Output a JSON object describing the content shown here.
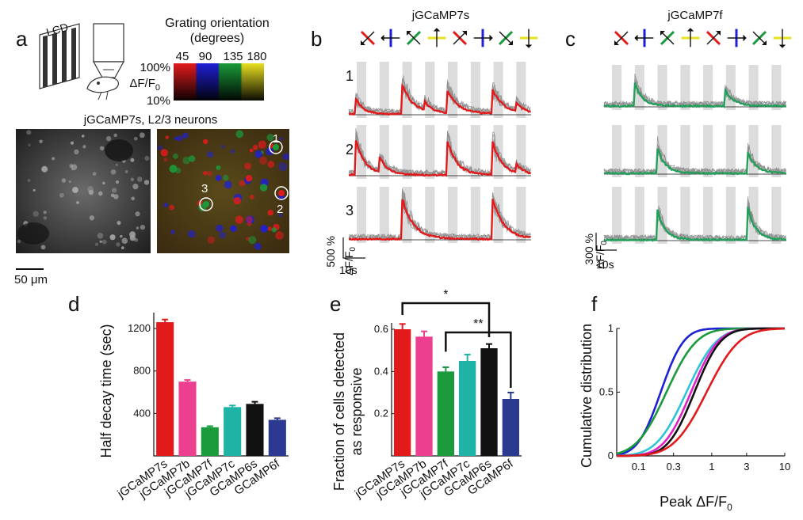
{
  "colors": {
    "red": "#e31a1c",
    "blue": "#1f1fd6",
    "green": "#1a9a3a",
    "yellow": "#e8e020",
    "grey": "#8c8c8c",
    "stim": "#dcdcdc",
    "trace_green": "#22a05a",
    "pink": "#ec3f8f",
    "teal": "#1fb3a5",
    "black": "#111111",
    "navy": "#2b3990",
    "cyan": "#2ec4d6",
    "magenta": "#e020c8"
  },
  "panel_a": {
    "label": "a",
    "lcd": "LCD",
    "colorbar_title_1": "Grating orientation",
    "colorbar_title_2": "(degrees)",
    "orientation_ticks": [
      "45",
      "90",
      "135",
      "180"
    ],
    "colorbar_max": "100%",
    "colorbar_min": "10%",
    "colorbar_ylabel": "ΔF/F",
    "colorbar_ylabel_sub": "0",
    "image_title": "jGCaMP7s, L2/3 neurons",
    "scale_bar": "50 μm",
    "cell_labels": [
      "1",
      "2",
      "3"
    ]
  },
  "panel_b": {
    "label": "b",
    "title": "jGCaMP7s",
    "row_labels": [
      "1",
      "2",
      "3"
    ],
    "scale_y": "500 %",
    "scale_unit": "ΔF/F",
    "scale_unit_sub": "0",
    "scale_x": "10s"
  },
  "panel_c": {
    "label": "c",
    "title": "jGCaMP7f",
    "scale_y": "300 %",
    "scale_unit": "ΔF/F",
    "scale_unit_sub": "0",
    "scale_x": "10s"
  },
  "chart_data": [
    {
      "type": "bar",
      "panel": "d",
      "categories": [
        "jGCaMP7s",
        "jGCaMP7b",
        "jGCaMP7f",
        "jGCaMP7c",
        "GCaMP6s",
        "GCaMP6f"
      ],
      "values": [
        1260,
        700,
        270,
        460,
        490,
        340
      ],
      "errors": [
        25,
        15,
        10,
        15,
        20,
        15
      ],
      "ylabel": "Half decay time (sec)",
      "yticks": [
        "400",
        "800",
        "1200"
      ],
      "ylim": [
        0,
        1350
      ]
    },
    {
      "type": "bar",
      "panel": "e",
      "categories": [
        "jGCaMP7s",
        "jGCaMP7b",
        "jGCaMP7f",
        "jGCaMP7c",
        "GCaMP6s",
        "GCaMP6f"
      ],
      "values": [
        0.6,
        0.565,
        0.4,
        0.45,
        0.51,
        0.27
      ],
      "errors": [
        0.025,
        0.025,
        0.02,
        0.03,
        0.02,
        0.03
      ],
      "ylabel_1": "Fraction of cells detected",
      "ylabel_2": "as responsive",
      "yticks": [
        "0.2",
        "0.4",
        "0.6"
      ],
      "ylim": [
        0,
        0.63
      ],
      "significance": [
        {
          "label": "*",
          "from": "jGCaMP7s",
          "to": "GCaMP6s"
        },
        {
          "label": "**",
          "from": "jGCaMP7f",
          "to": "GCaMP6f"
        }
      ]
    },
    {
      "type": "line",
      "panel": "f",
      "xscale": "log",
      "xlabel": "Peak ΔF/F",
      "xlabel_sub": "0",
      "ylabel": "Cumulative distribution",
      "xticks": [
        "0.1",
        "0.3",
        "1",
        "3",
        "10"
      ],
      "yticks": [
        "0",
        "0.5",
        "1"
      ],
      "xlim": [
        0.05,
        10
      ],
      "ylim": [
        0,
        1
      ],
      "series": [
        {
          "color": "blue",
          "median": 0.2,
          "spread": 0.42
        },
        {
          "color": "green",
          "median": 0.24,
          "spread": 0.55
        },
        {
          "color": "cyan",
          "median": 0.45,
          "spread": 0.55
        },
        {
          "color": "magenta",
          "median": 0.52,
          "spread": 0.5
        },
        {
          "color": "black",
          "median": 0.58,
          "spread": 0.48
        },
        {
          "color": "red",
          "median": 0.85,
          "spread": 0.6
        }
      ]
    }
  ]
}
